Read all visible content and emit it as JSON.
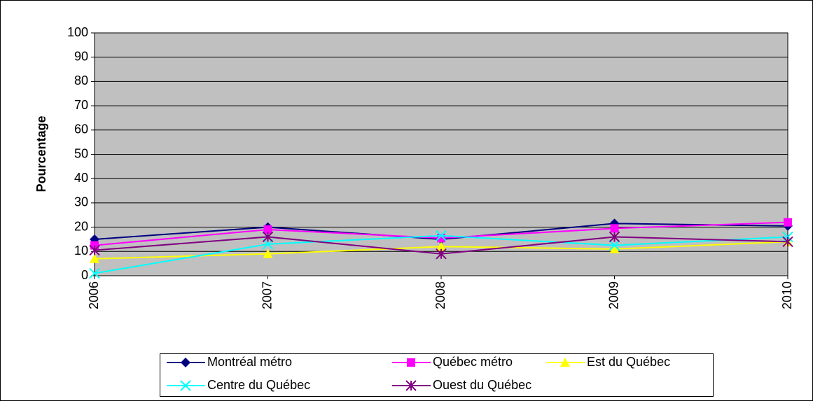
{
  "chart_data": {
    "type": "line",
    "y_label": "Pourcentage",
    "categories": [
      "2006",
      "2007",
      "2008",
      "2009",
      "2010"
    ],
    "series": [
      {
        "name": "Montréal métro",
        "color": "#000080",
        "marker": "diamond",
        "values": [
          15,
          20,
          15,
          21.5,
          20.5
        ]
      },
      {
        "name": "Québec métro",
        "color": "#ff00ff",
        "marker": "square",
        "values": [
          12.5,
          19,
          15.5,
          19.5,
          22
        ]
      },
      {
        "name": "Est du Québec",
        "color": "#ffff00",
        "marker": "triangle",
        "values": [
          7,
          9,
          12,
          11,
          14
        ]
      },
      {
        "name": "Centre du Québec",
        "color": "#00ffff",
        "marker": "x",
        "values": [
          1,
          13,
          16.5,
          12.5,
          16
        ]
      },
      {
        "name": "Ouest du Québec",
        "color": "#800080",
        "marker": "star",
        "values": [
          10.5,
          16,
          9,
          16,
          14
        ]
      }
    ],
    "ylim": [
      0,
      100
    ],
    "yticks": [
      0,
      10,
      20,
      30,
      40,
      50,
      60,
      70,
      80,
      90,
      100
    ],
    "grid": true,
    "plot_background": "#c0c0c0",
    "legend": "bottom"
  }
}
